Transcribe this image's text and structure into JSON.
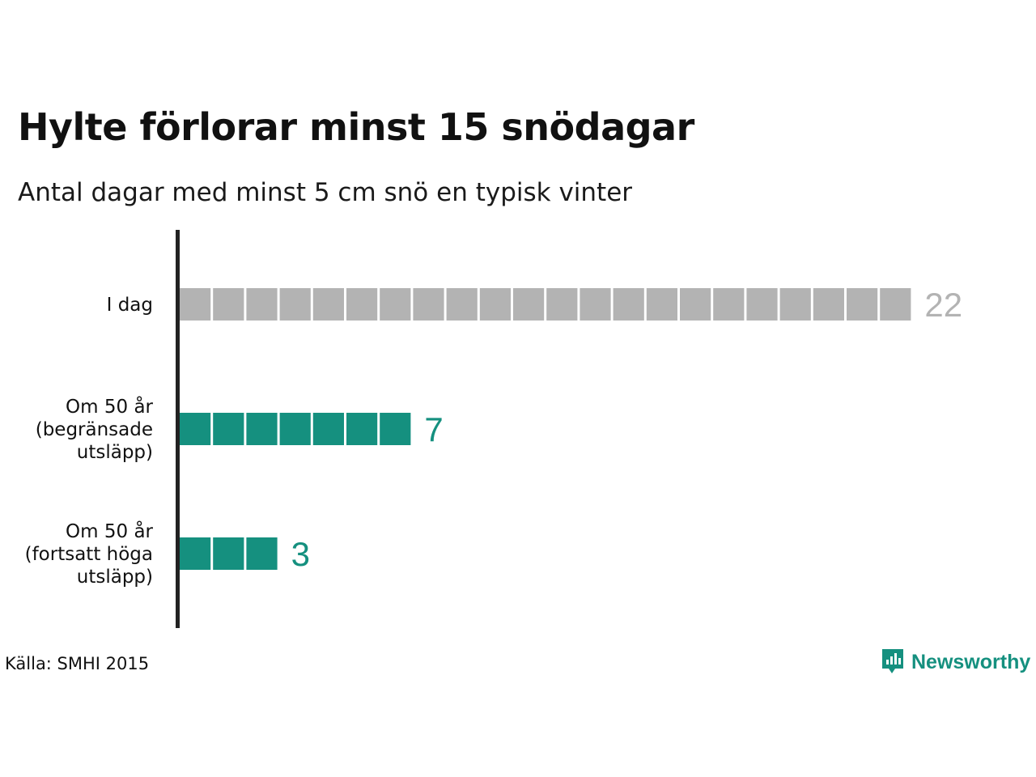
{
  "title": "Hylte förlorar minst 15 snödagar",
  "subtitle": "Antal dagar med minst 5 cm snö en typisk vinter",
  "source": "Källa: SMHI 2015",
  "brand": {
    "name": "Newsworthy",
    "icon": "newsworthy-logo-icon",
    "color": "#15907f"
  },
  "colors": {
    "today": "#b3b3b3",
    "future": "#15907f"
  },
  "chart_data": {
    "type": "bar",
    "orientation": "horizontal",
    "style": "unit-squares",
    "categories": [
      "I dag",
      "Om 50 år\n(begränsade\nutsläpp)",
      "Om 50 år\n(fortsatt höga\nutsläpp)"
    ],
    "values": [
      22,
      7,
      3
    ],
    "value_labels": [
      "22",
      "7",
      "3"
    ],
    "bar_colors": [
      "#b3b3b3",
      "#15907f",
      "#15907f"
    ],
    "title": "Hylte förlorar minst 15 snödagar",
    "subtitle": "Antal dagar med minst 5 cm snö en typisk vinter",
    "xlabel": "",
    "ylabel": "",
    "grid": false,
    "legend": "none"
  }
}
